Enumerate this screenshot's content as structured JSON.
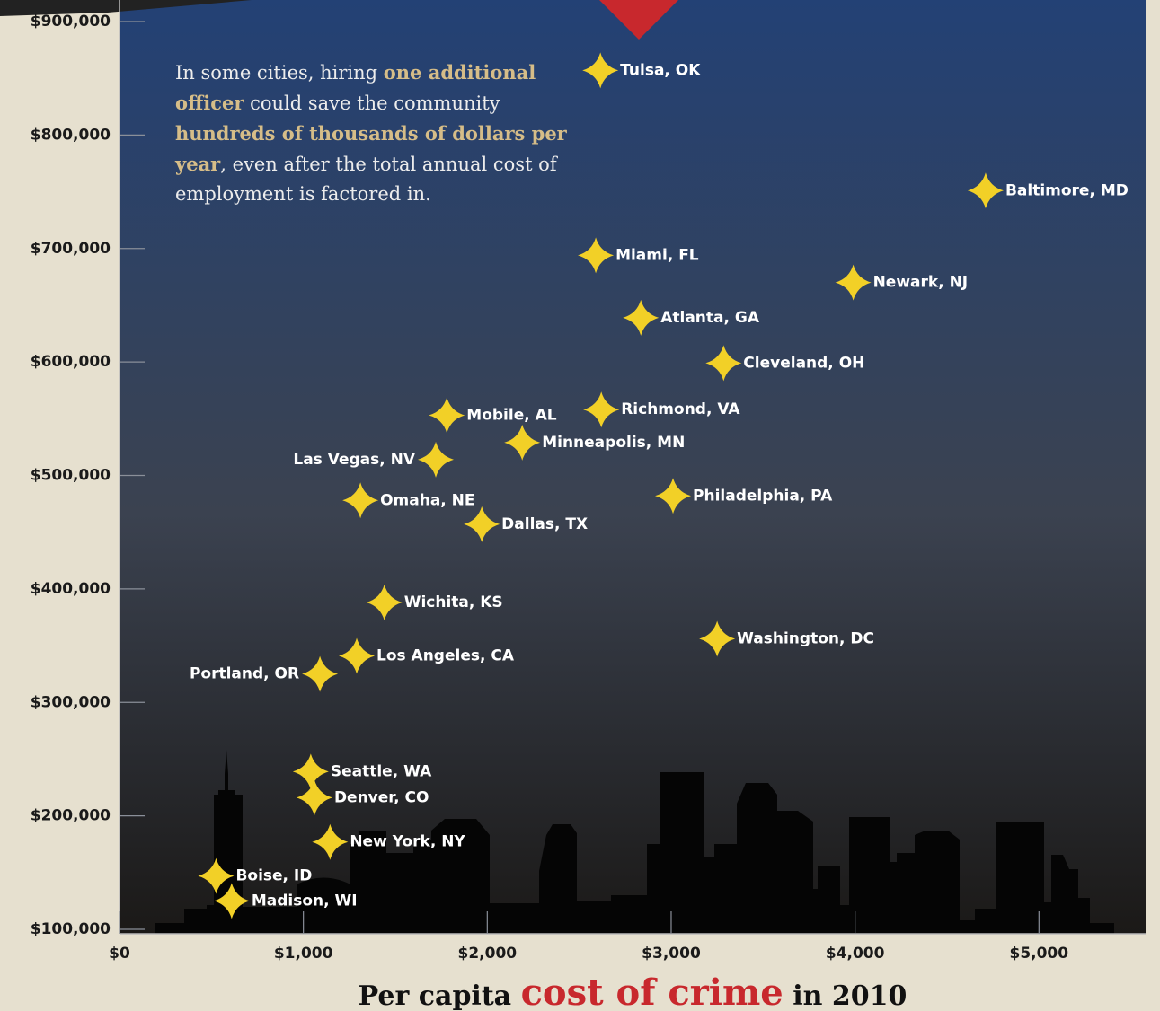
{
  "chart_data": {
    "type": "scatter",
    "annotation": [
      {
        "text": "In some cities, hiring "
      },
      {
        "text": "one additional officer",
        "emphasis": true
      },
      {
        "text": " could save the community "
      },
      {
        "text": "hundreds of thousands of dollars per year",
        "emphasis": true
      },
      {
        "text": ", even after the total annual cost of employment is factored in."
      }
    ],
    "x_label": [
      {
        "text": "Per capita "
      },
      {
        "text": "cost of crime",
        "emphasis": true
      },
      {
        "text": " in 2010"
      }
    ],
    "point_color": "#f2d027",
    "series": [
      {
        "labels": [
          "Tulsa, OK",
          "Baltimore, MD",
          "Miami, FL",
          "Newark, NJ",
          "Atlanta, GA",
          "Cleveland, OH",
          "Mobile, AL",
          "Richmond, VA",
          "Minneapolis, MN",
          "Las Vegas, NV",
          "Omaha, NE",
          "Dallas, TX",
          "Philadelphia, PA",
          "Wichita, KS",
          "Washington, DC",
          "Los Angeles, CA",
          "Portland, OR",
          "Seattle, WA",
          "Denver, CO",
          "New York, NY",
          "Boise, ID",
          "Madison, WI"
        ],
        "x": [
          2615,
          4710,
          2590,
          3990,
          2835,
          3285,
          1780,
          2620,
          2190,
          1720,
          1310,
          1970,
          3010,
          1440,
          3250,
          1290,
          1090,
          1040,
          1060,
          1145,
          525,
          610
        ],
        "values": [
          857000,
          751000,
          694000,
          670000,
          639000,
          599000,
          553000,
          558000,
          529000,
          514000,
          478000,
          457000,
          482000,
          388000,
          356000,
          341000,
          325000,
          239000,
          216000,
          177000,
          147000,
          125000
        ]
      }
    ],
    "xlim": [
      0,
      5580
    ],
    "ylim": [
      100000,
      919000
    ],
    "xticks": [
      {
        "value": 0,
        "label": "$0"
      },
      {
        "value": 1000,
        "label": "$1,000"
      },
      {
        "value": 2000,
        "label": "$2,000"
      },
      {
        "value": 3000,
        "label": "$3,000"
      },
      {
        "value": 4000,
        "label": "$4,000"
      },
      {
        "value": 5000,
        "label": "$5,000"
      }
    ],
    "yticks": [
      {
        "value": 100000,
        "label": "$100,000"
      },
      {
        "value": 200000,
        "label": "$200,000"
      },
      {
        "value": 300000,
        "label": "$300,000"
      },
      {
        "value": 400000,
        "label": "$400,000"
      },
      {
        "value": 500000,
        "label": "$500,000"
      },
      {
        "value": 600000,
        "label": "$600,000"
      },
      {
        "value": 700000,
        "label": "$700,000"
      },
      {
        "value": 800000,
        "label": "$800,000"
      },
      {
        "value": 900000,
        "label": "$900,000"
      }
    ]
  }
}
